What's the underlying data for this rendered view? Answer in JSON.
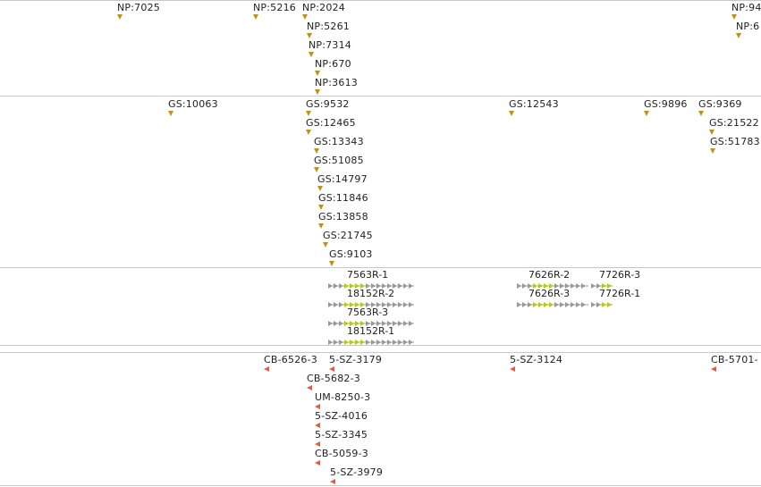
{
  "colors": {
    "marker_orange": "#c6900c",
    "marker_red": "#e85a3e",
    "gene_grey": "#999999",
    "gene_yellow": "#b9cc00",
    "divider": "#c8c8c8"
  },
  "tracks": [
    {
      "id": "np",
      "marker": "triangle-down-icon",
      "features": [
        "NP:7025",
        "NP:5216",
        "NP:2024",
        "NP:5261",
        "NP:7314",
        "NP:670",
        "NP:3613",
        "NP:94",
        "NP:6"
      ]
    },
    {
      "id": "gs",
      "marker": "triangle-down-icon",
      "features": [
        "GS:10063",
        "GS:9532",
        "GS:12465",
        "GS:13343",
        "GS:51085",
        "GS:14797",
        "GS:11846",
        "GS:13858",
        "GS:21745",
        "GS:9103",
        "GS:12543",
        "GS:9896",
        "GS:9369",
        "GS:21522",
        "GS:51783"
      ]
    },
    {
      "id": "genes",
      "marker": "gene-arrow-icon",
      "features": [
        "7563R-1",
        "18152R-2",
        "7563R-3",
        "18152R-1",
        "7626R-2",
        "7626R-3",
        "7726R-3",
        "7726R-1"
      ]
    },
    {
      "id": "cb",
      "marker": "triangle-left-icon",
      "features": [
        "CB-6526-3",
        "5-SZ-3179",
        "CB-5682-3",
        "UM-8250-3",
        "5-SZ-4016",
        "5-SZ-3345",
        "CB-5059-3",
        "5-SZ-3979",
        "5-SZ-3124",
        "CB-5701-"
      ]
    }
  ]
}
